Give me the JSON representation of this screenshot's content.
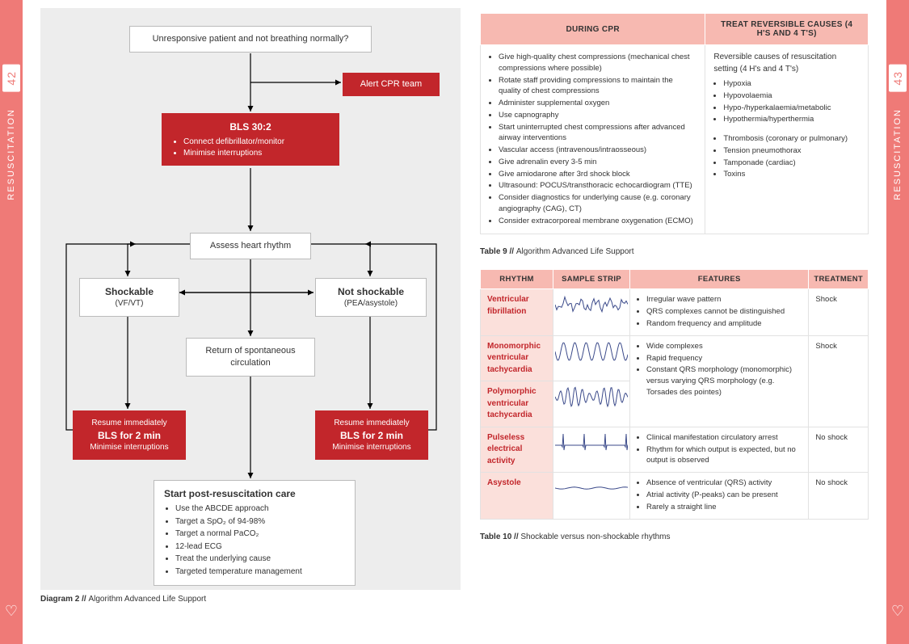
{
  "sidebar": {
    "left_page": "42",
    "right_page": "43",
    "label": "RESUSCITATION"
  },
  "colors": {
    "accent": "#ef7a77",
    "red": "#c2262b",
    "header_pink": "#f7b9b1",
    "cell_pink": "#fbe0db",
    "flow_bg": "#ededed",
    "border_grey": "#e2e2e2",
    "ecg_stroke": "#3b4a8a"
  },
  "flow": {
    "n1": "Unresponsive patient and not breathing normally?",
    "alert": "Alert CPR team",
    "bls_title": "BLS 30:2",
    "bls_items": [
      "Connect defibrillator/monitor",
      "Minimise interruptions"
    ],
    "assess": "Assess heart rhythm",
    "shock_t": "Shockable",
    "shock_s": "(VF/VT)",
    "nshock_t": "Not shockable",
    "nshock_s": "(PEA/asystole)",
    "rosc": "Return of spontaneous circulation",
    "resume1": "Resume immediately",
    "resume2": "BLS for 2 min",
    "resume3": "Minimise interruptions",
    "post_t": "Start post-resuscitation care",
    "post_items": [
      "Use the ABCDE approach",
      "Target a SpO₂ of 94-98%",
      "Target a normal PaCO₂",
      "12-lead ECG",
      "Treat the underlying cause",
      "Targeted temperature management"
    ],
    "caption_b": "Diagram 2 // ",
    "caption_t": "Algorithm Advanced Life Support"
  },
  "table9": {
    "h1": "DURING CPR",
    "h2": "TREAT REVERSIBLE CAUSES (4 H'S AND 4 T'S)",
    "left": [
      "Give high-quality chest compressions (mechanical chest compressions where possible)",
      "Rotate staff providing compressions to maintain the quality of chest compressions",
      "Administer supplemental oxygen",
      "Use capnography",
      "Start uninterrupted chest compressions after advanced airway interventions",
      "Vascular access (intravenous/intraosseous)",
      "Give adrenalin every 3-5 min",
      "Give amiodarone after 3rd shock block",
      "Ultrasound: POCUS/transthoracic echocardiogram (TTE)",
      "Consider diagnostics for underlying cause (e.g. coronary angiography (CAG), CT)",
      "Consider extracorporeal membrane oxygenation (ECMO)"
    ],
    "right_intro": "Reversible causes of resuscitation setting (4 H's and 4 T's)",
    "right_h": [
      "Hypoxia",
      "Hypovolaemia",
      "Hypo-/hyperkalaemia/metabolic",
      "Hypothermia/hyperthermia"
    ],
    "right_t": [
      "Thrombosis (coronary or pulmonary)",
      "Tension pneumothorax",
      "Tamponade (cardiac)",
      "Toxins"
    ],
    "caption_b": "Table 9 // ",
    "caption_t": "Algorithm Advanced Life Support"
  },
  "table10": {
    "headers": [
      "RHYTHM",
      "SAMPLE STRIP",
      "FEATURES",
      "TREATMENT"
    ],
    "rows": [
      {
        "rhythm": "Ventricular fibrillation",
        "features": [
          "Irregular wave pattern",
          "QRS complexes cannot be distinguished",
          "Random frequency and amplitude"
        ],
        "treatment": "Shock",
        "strip": "vf"
      },
      {
        "rhythm": "Monomorphic ventricular tachycardia",
        "features": [
          "Wide complexes",
          "Rapid frequency",
          "Constant QRS morphology (monomorphic) versus varying QRS morphology (e.g. Torsades des pointes)"
        ],
        "treatment": "Shock",
        "strip": "mvt",
        "merge_feat_treat_down": true
      },
      {
        "rhythm": "Polymorphic ventricular tachycardia",
        "strip": "pvt",
        "merged": true
      },
      {
        "rhythm": "Pulseless electrical activity",
        "features": [
          "Clinical manifestation circulatory arrest",
          "Rhythm for which output is expected, but no output is observed"
        ],
        "treatment": "No shock",
        "strip": "pea"
      },
      {
        "rhythm": "Asystole",
        "features": [
          "Absence of ventricular (QRS) activity",
          "Atrial activity (P-peaks) can be present",
          "Rarely a straight line"
        ],
        "treatment": "No shock",
        "strip": "asys"
      }
    ],
    "caption_b": "Table 10 // ",
    "caption_t": "Shockable versus non-shockable rhythms"
  }
}
